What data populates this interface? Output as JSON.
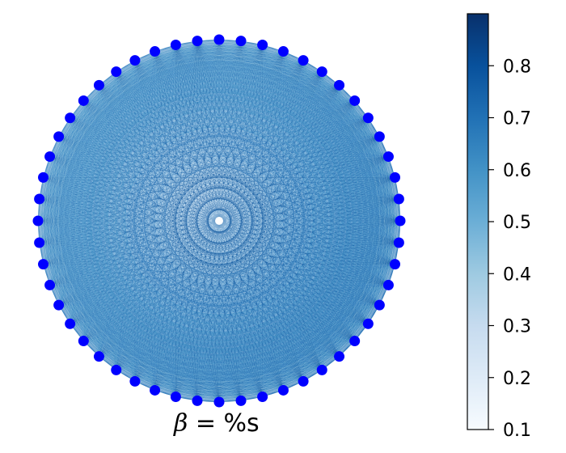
{
  "caption": {
    "symbol": "β",
    "text": " = %s"
  },
  "graph": {
    "node_count": 52,
    "node_color": "#0000ff",
    "edge_colormap": "Blues"
  },
  "colorbar": {
    "min": 0.1,
    "max": 0.9,
    "ticks": [
      "0.1",
      "0.2",
      "0.3",
      "0.4",
      "0.5",
      "0.6",
      "0.7",
      "0.8"
    ],
    "colors": [
      "#f7fbff",
      "#deebf7",
      "#c6dbef",
      "#9ecae1",
      "#6baed6",
      "#4292c6",
      "#2171b5",
      "#08519c",
      "#08306b"
    ]
  }
}
